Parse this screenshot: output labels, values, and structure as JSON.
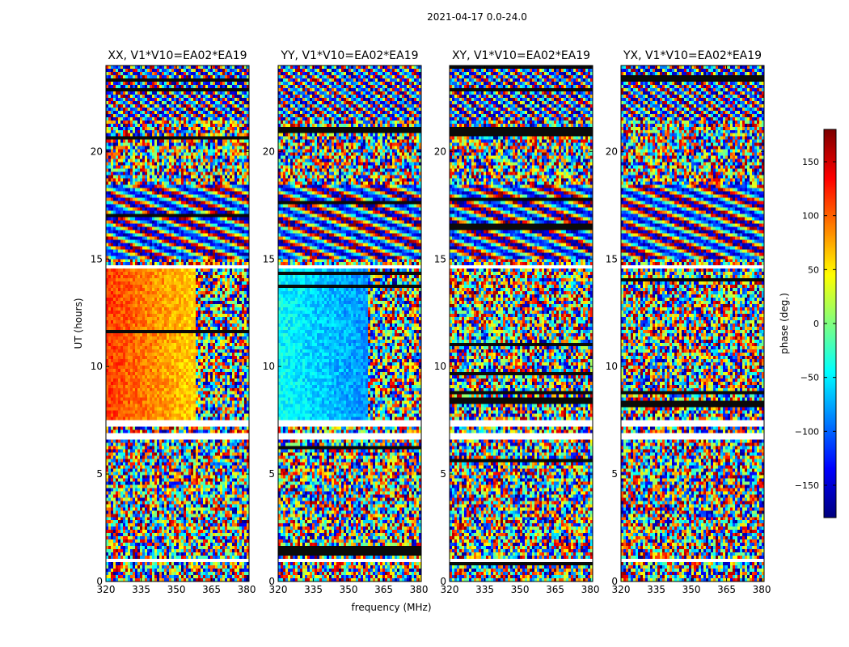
{
  "figure": {
    "suptitle": "2021-04-17 0.0-24.0"
  },
  "chart_data": {
    "type": "heatmap",
    "xlabel": "frequency (MHz)",
    "ylabel": "UT (hours)",
    "xlim": [
      320,
      381
    ],
    "ylim": [
      0,
      24
    ],
    "xticks": [
      320,
      335,
      350,
      365,
      380
    ],
    "yticks": [
      0,
      5,
      10,
      15,
      20
    ],
    "panels": [
      {
        "title": "XX, V1*V10=EA02*EA19",
        "pol": "XX"
      },
      {
        "title": "YY, V1*V10=EA02*EA19",
        "pol": "YY"
      },
      {
        "title": "XY, V1*V10=EA02*EA19",
        "pol": "XY"
      },
      {
        "title": "YX, V1*V10=EA02*EA19",
        "pol": "YX"
      }
    ],
    "colorbar": {
      "label": "phase (deg.)",
      "range": [
        -180,
        180
      ],
      "ticks": [
        150,
        100,
        50,
        0,
        -50,
        -100,
        -150
      ],
      "tick_labels": [
        "150",
        "100",
        "50",
        "0",
        "−50",
        "−100",
        "−150"
      ],
      "colormap": "jet"
    },
    "gaps_ut_hours": [
      [
        7.3,
        7.55
      ],
      [
        6.7,
        6.9
      ],
      [
        2.55,
        2.7
      ],
      [
        1.0,
        1.1
      ],
      [
        14.6,
        14.75
      ],
      [
        16.1,
        16.2
      ]
    ]
  },
  "colors": {
    "axis": "#000000",
    "background": "#ffffff"
  }
}
